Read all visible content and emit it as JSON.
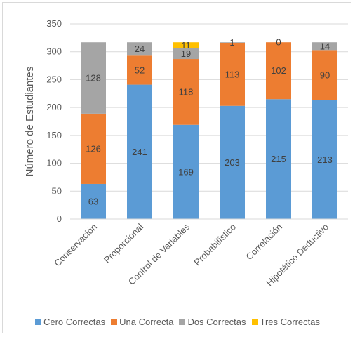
{
  "chart_data": {
    "type": "bar",
    "stacked": true,
    "ylabel": "Número de Estudiantes",
    "ylim": [
      0,
      350
    ],
    "yticks": [
      0,
      50,
      100,
      150,
      200,
      250,
      300,
      350
    ],
    "categories": [
      "Conservación",
      "Proporcional",
      "Control de Variables",
      "Probabilístico",
      "Correlación",
      "Hipotético Deductivo"
    ],
    "series": [
      {
        "name": "Cero Correctas",
        "color": "#5b9bd5",
        "values": [
          63,
          241,
          169,
          203,
          215,
          213
        ]
      },
      {
        "name": "Una Correcta",
        "color": "#ed7d31",
        "values": [
          126,
          52,
          118,
          113,
          102,
          90
        ]
      },
      {
        "name": "Dos Correctas",
        "color": "#a5a5a5",
        "values": [
          128,
          24,
          19,
          1,
          0,
          14
        ]
      },
      {
        "name": "Tres Correctas",
        "color": "#ffc000",
        "values": [
          0,
          0,
          11,
          0,
          0,
          0
        ]
      }
    ],
    "data_labels": [
      [
        "63",
        "241",
        "169",
        "203",
        "215",
        "213"
      ],
      [
        "126",
        "52",
        "118",
        "113",
        "102",
        "90"
      ],
      [
        "128",
        "24",
        "19",
        "1",
        "0",
        "14"
      ],
      [
        "",
        "",
        "11",
        "",
        "",
        ""
      ]
    ],
    "grid": true,
    "legend_position": "bottom"
  }
}
